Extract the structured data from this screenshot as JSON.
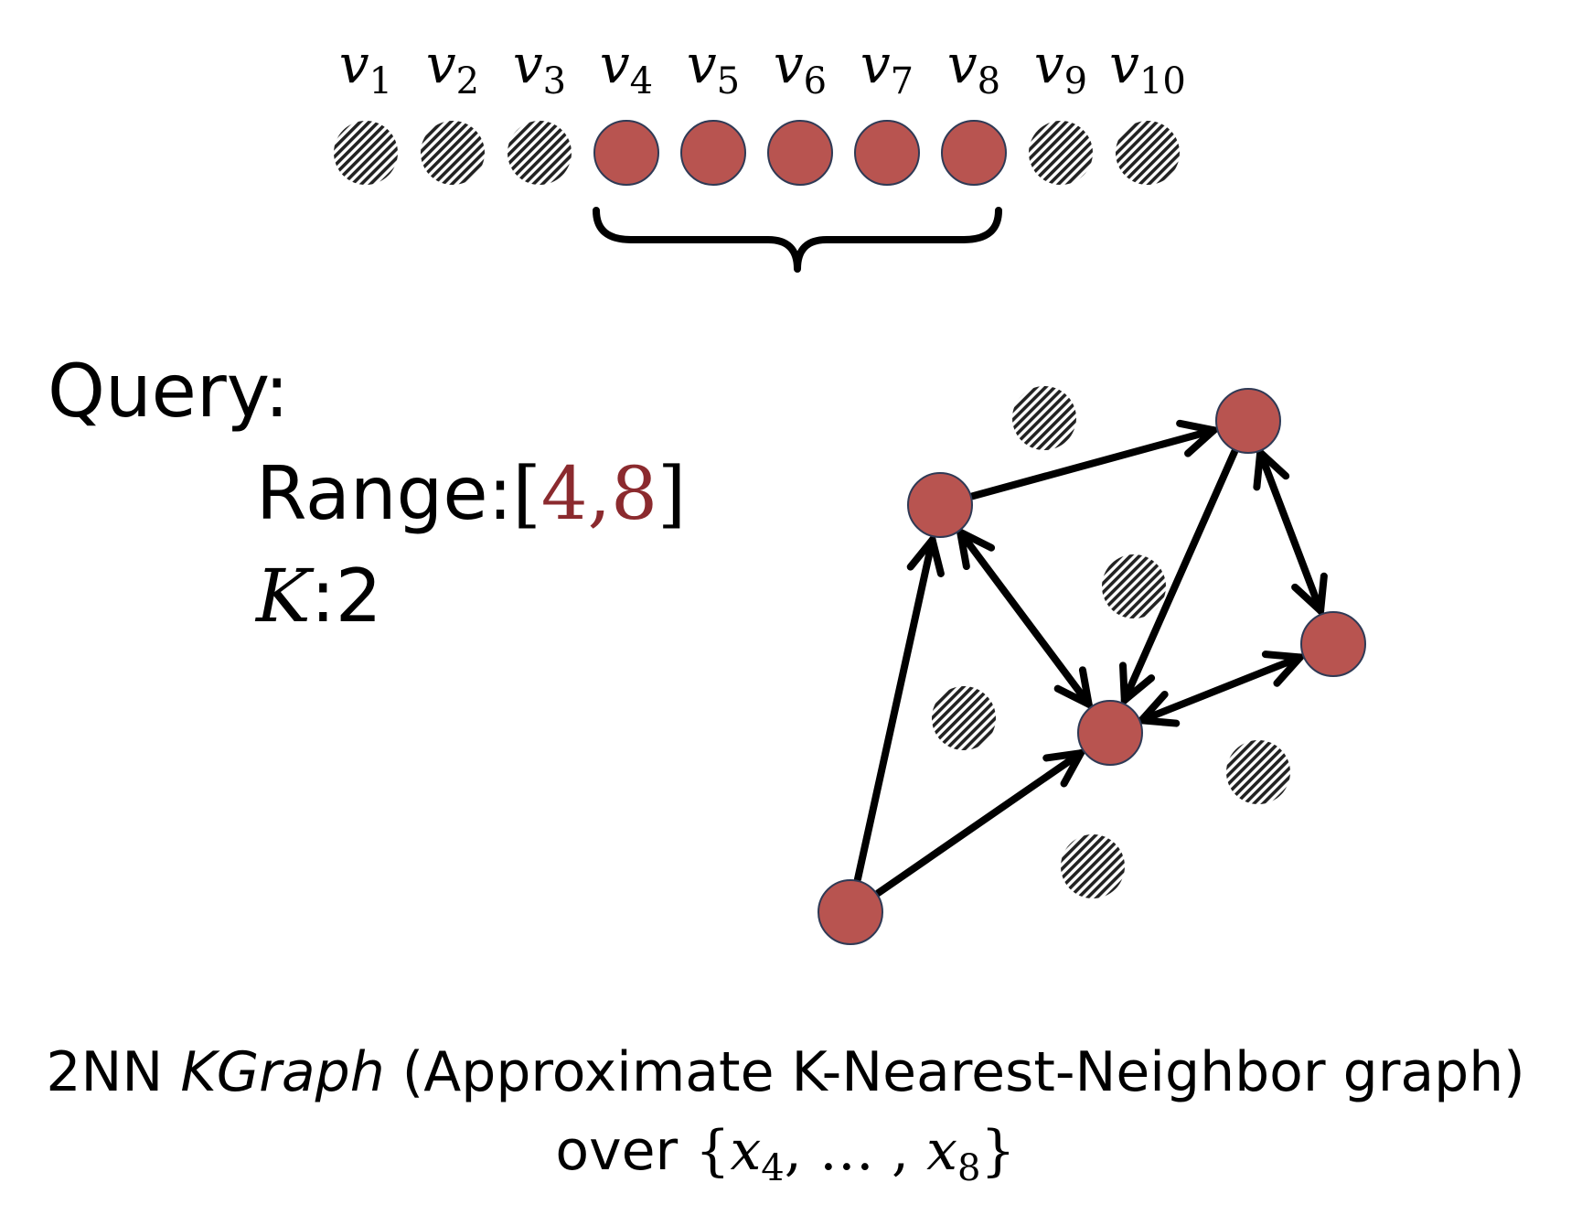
{
  "vertices": [
    {
      "name": "v",
      "sub": "1",
      "in_range": false
    },
    {
      "name": "v",
      "sub": "2",
      "in_range": false
    },
    {
      "name": "v",
      "sub": "3",
      "in_range": false
    },
    {
      "name": "v",
      "sub": "4",
      "in_range": true
    },
    {
      "name": "v",
      "sub": "5",
      "in_range": true
    },
    {
      "name": "v",
      "sub": "6",
      "in_range": true
    },
    {
      "name": "v",
      "sub": "7",
      "in_range": true
    },
    {
      "name": "v",
      "sub": "8",
      "in_range": true
    },
    {
      "name": "v",
      "sub": "9",
      "in_range": false
    },
    {
      "name": "v",
      "sub": "10",
      "in_range": false
    }
  ],
  "query": {
    "title": "Query:",
    "range_label": "Range:",
    "range_open": "[",
    "range_value": "4,8",
    "range_close": "]",
    "k_var": "K",
    "k_sep": ":",
    "k_value": "2"
  },
  "graph": {
    "edges": [
      {
        "from": "a",
        "to": "b",
        "direction": "forward"
      },
      {
        "from": "a",
        "to": "c",
        "direction": "both"
      },
      {
        "from": "b",
        "to": "c",
        "direction": "forward"
      },
      {
        "from": "b",
        "to": "d",
        "direction": "both"
      },
      {
        "from": "c",
        "to": "d",
        "direction": "both"
      },
      {
        "from": "e",
        "to": "a",
        "direction": "forward"
      },
      {
        "from": "e",
        "to": "c",
        "direction": "forward"
      }
    ]
  },
  "caption": {
    "line1_prefix": "2NN ",
    "line1_em": "KGraph",
    "line1_suffix": " (Approximate K-Nearest-Neighbor graph)",
    "line2_prefix": "over ",
    "set_open": "{",
    "x_var": "x",
    "x_first_sub": "4",
    "set_middle": ", … , ",
    "x_last_sub": "8",
    "set_close": "}"
  },
  "colors": {
    "in_range_fill": "#b85450",
    "node_stroke": "#2f3a55",
    "range_value": "#8b2a2e",
    "edge": "#000000"
  }
}
